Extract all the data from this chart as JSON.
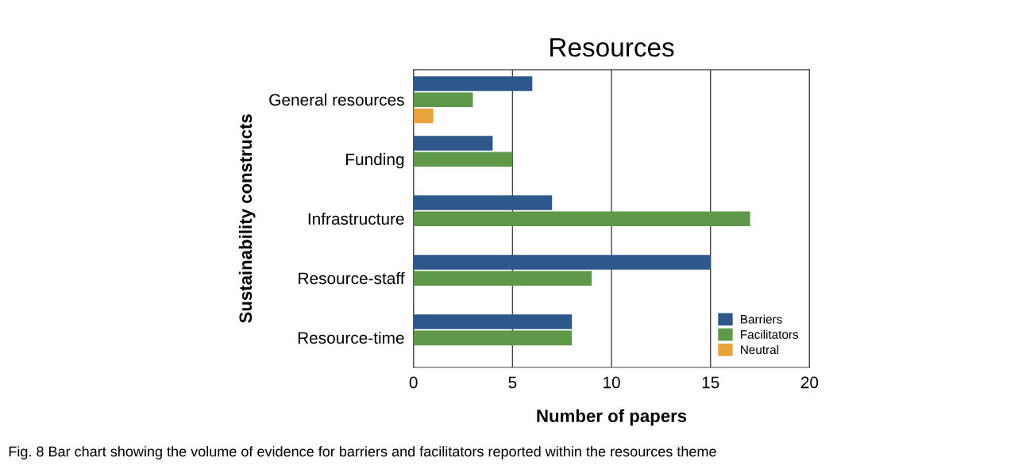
{
  "chart_data": {
    "type": "bar",
    "orientation": "horizontal",
    "title": "Resources",
    "xlabel": "Number of papers",
    "ylabel": "Sustainability constructs",
    "categories": [
      "General resources",
      "Funding",
      "Infrastructure",
      "Resource-staff",
      "Resource-time"
    ],
    "series": [
      {
        "name": "Barriers",
        "color": "#2e578c",
        "values": [
          6,
          4,
          7,
          15,
          8
        ]
      },
      {
        "name": "Facilitators",
        "color": "#5e9849",
        "values": [
          3,
          5,
          17,
          9,
          8
        ]
      },
      {
        "name": "Neutral",
        "color": "#e8a33d",
        "values": [
          1,
          null,
          null,
          null,
          null
        ]
      }
    ],
    "xlim": [
      0,
      20
    ],
    "xticks": [
      0,
      5,
      10,
      15,
      20
    ],
    "grid": "x",
    "legend": "bottom right",
    "annotations": [
      "Fig. 8 Bar chart showing the volume of evidence for barriers and facilitators reported within the resources theme"
    ]
  }
}
